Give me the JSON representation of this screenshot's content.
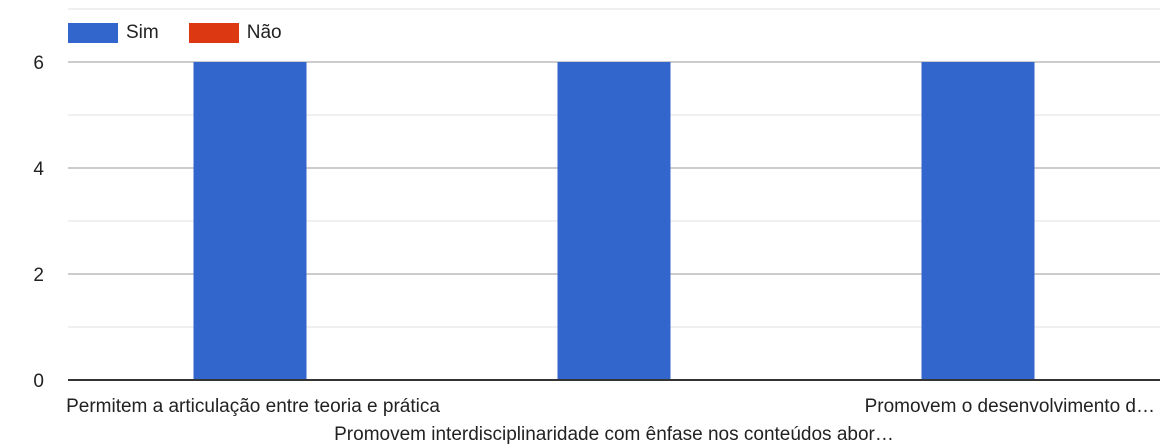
{
  "chart_data": {
    "type": "bar",
    "categories": [
      "Permitem a articulação entre teoria e prática",
      "Promovem interdisciplinaridade com ênfase nos conteúdos abor…",
      "Promovem o desenvolvimento d…"
    ],
    "series": [
      {
        "name": "Sim",
        "values": [
          6,
          6,
          6
        ],
        "color": "#3366cc"
      },
      {
        "name": "Não",
        "values": [
          0,
          0,
          0
        ],
        "color": "#dc3912"
      }
    ],
    "title": "",
    "xlabel": "",
    "ylabel": "",
    "ylim": [
      0,
      6
    ],
    "yticks": [
      "0",
      "2",
      "4",
      "6"
    ],
    "grid": true,
    "legend_position": "top-left"
  }
}
